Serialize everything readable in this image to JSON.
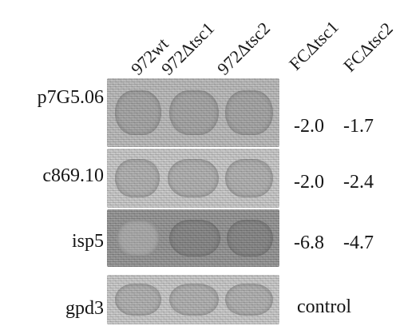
{
  "columns": [
    "972wt",
    "972Δtsc1",
    "972Δtsc2",
    "FCΔtsc1",
    "FCΔtsc2"
  ],
  "rows": [
    {
      "gene": "p7G5.06",
      "fc_tsc1": "-2.0",
      "fc_tsc2": "-1.7"
    },
    {
      "gene": "c869.10",
      "fc_tsc1": "-2.0",
      "fc_tsc2": "-2.4"
    },
    {
      "gene": "isp5",
      "fc_tsc1": "-6.8",
      "fc_tsc2": "-4.7"
    },
    {
      "gene": "gpd3",
      "note": "control"
    }
  ]
}
